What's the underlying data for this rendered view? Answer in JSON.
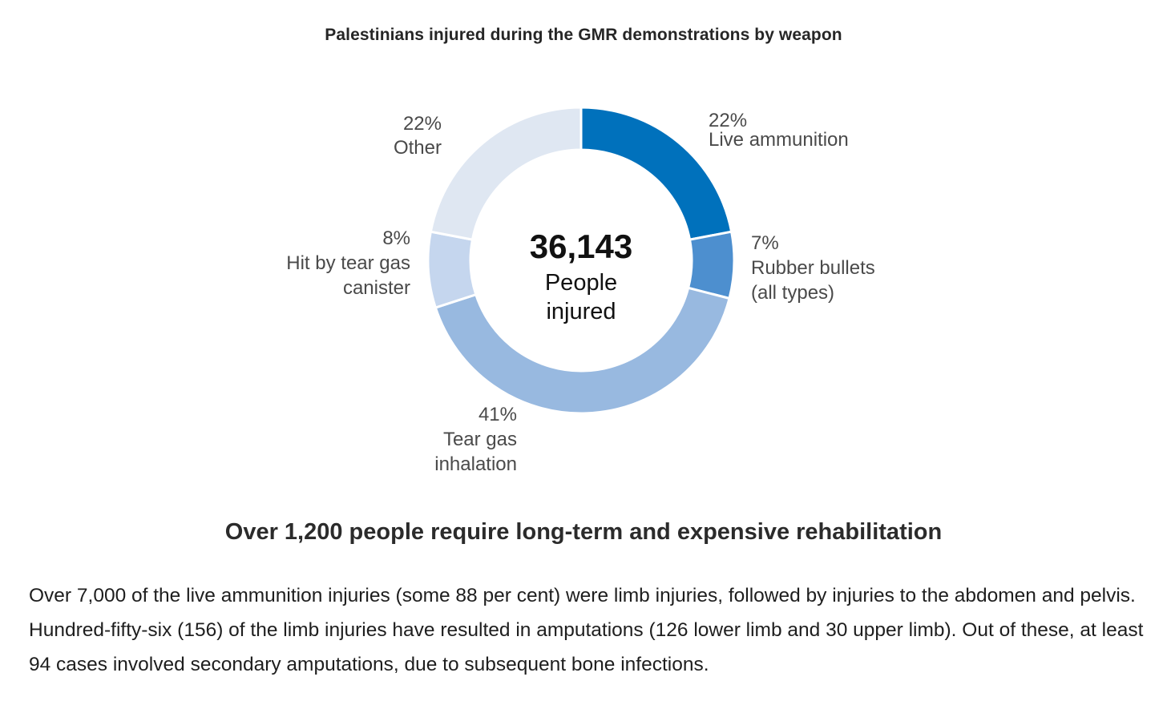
{
  "chart_data": {
    "type": "pie",
    "title": "Palestinians injured during the GMR demonstrations by weapon",
    "center": {
      "number": "36,143",
      "line1": "People",
      "line2": "injured"
    },
    "slices": [
      {
        "label_lines": [
          "Live ammunition"
        ],
        "percent_label": "22%",
        "value": 22,
        "color": "#0071bc"
      },
      {
        "label_lines": [
          "Rubber bullets",
          "(all types)"
        ],
        "percent_label": "7%",
        "value": 7,
        "color": "#4d8fcf"
      },
      {
        "label_lines": [
          "Tear gas",
          "inhalation"
        ],
        "percent_label": "41%",
        "value": 41,
        "color": "#98b9e0"
      },
      {
        "label_lines": [
          "Hit by tear gas",
          "canister"
        ],
        "percent_label": "8%",
        "value": 8,
        "color": "#c5d6ee"
      },
      {
        "label_lines": [
          "Other"
        ],
        "percent_label": "22%",
        "value": 22,
        "color": "#dfe7f2"
      }
    ]
  },
  "heading": "Over 1,200 people require long-term and expensive rehabilitation",
  "paragraph": "Over 7,000 of the live ammunition injuries (some 88 per cent) were limb injuries, followed by injuries to the abdomen and pelvis. Hundred-fifty-six (156) of the limb injuries have resulted in amputations (126 lower limb and 30 upper limb). Out of these, at least 94 cases involved secondary amputations, due to subsequent bone infections."
}
